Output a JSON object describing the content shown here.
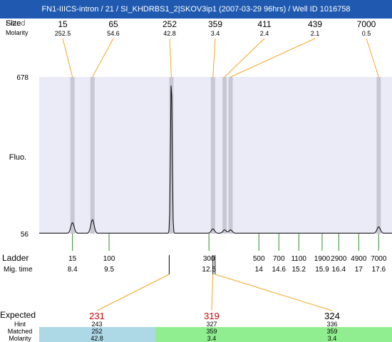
{
  "title": "FN1-IIICS-intron / 21 / SI_KHDRBS1_2|SKOV3ip1 (2007-03-29 96hrs) / Well ID 1016758",
  "header": {
    "ghost_label": "Fitted",
    "size_label": "Size",
    "molarity_label": "Molarity"
  },
  "colors": {
    "title_bg": "#1f5ab0",
    "plot_bg": "#ebebf7",
    "peak_band": "#c8c8d4",
    "leader_line": "#f5a623",
    "ladder_tick": "#2e8b2e",
    "expected_highlight": "#cc0000",
    "matched_blue": "#add8e6",
    "matched_green": "#90ee90"
  },
  "chart_data": {
    "type": "line",
    "ylabel": "Fluo.",
    "y_ticks": [
      "678",
      "56"
    ],
    "ylim": [
      56,
      678
    ],
    "xlim": [
      7.4,
      18.0
    ],
    "peaks": [
      {
        "size": "15",
        "molarity": "252.5",
        "time": 8.4,
        "height": 100
      },
      {
        "size": "65",
        "molarity": "54.6",
        "time": 9.0,
        "height": 112
      },
      {
        "size": "252",
        "molarity": "42.8",
        "time": 11.37,
        "height": 678
      },
      {
        "size": "359",
        "molarity": "3.4",
        "time": 12.62,
        "height": 75
      },
      {
        "size": "411",
        "molarity": "2.4",
        "time": 12.97,
        "height": 71
      },
      {
        "size": "439",
        "molarity": "2.1",
        "time": 13.15,
        "height": 71
      },
      {
        "size": "7000",
        "molarity": "0.5",
        "time": 17.6,
        "height": 83
      }
    ],
    "ladder": {
      "label": "Ladder",
      "time_label": "Mig. time",
      "items": [
        {
          "size": "15",
          "time": "8.4"
        },
        {
          "size": "100",
          "time": "9.5"
        },
        {
          "size": "300",
          "time": "12.5"
        },
        {
          "size": "500",
          "time": "14"
        },
        {
          "size": "700",
          "time": "14.6"
        },
        {
          "size": "1100",
          "time": "15.2"
        },
        {
          "size": "1900",
          "time": "15.9"
        },
        {
          "size": "2900",
          "time": "16.4"
        },
        {
          "size": "4900",
          "time": "17"
        },
        {
          "size": "7000",
          "time": "17.6"
        }
      ]
    }
  },
  "expected_table": {
    "row_labels": [
      "Expected",
      "Hint",
      "Matched",
      "Molarity"
    ],
    "columns": [
      {
        "expected": "231",
        "hint": "243",
        "matched": "252",
        "molarity": "42.8",
        "highlight": true,
        "match_color": "blue"
      },
      {
        "expected": "319",
        "hint": "327",
        "matched": "359",
        "molarity": "3.4",
        "highlight": true,
        "match_color": "green"
      },
      {
        "expected": "324",
        "hint": "336",
        "matched": "359",
        "molarity": "3.4",
        "highlight": false,
        "match_color": "green"
      }
    ]
  }
}
